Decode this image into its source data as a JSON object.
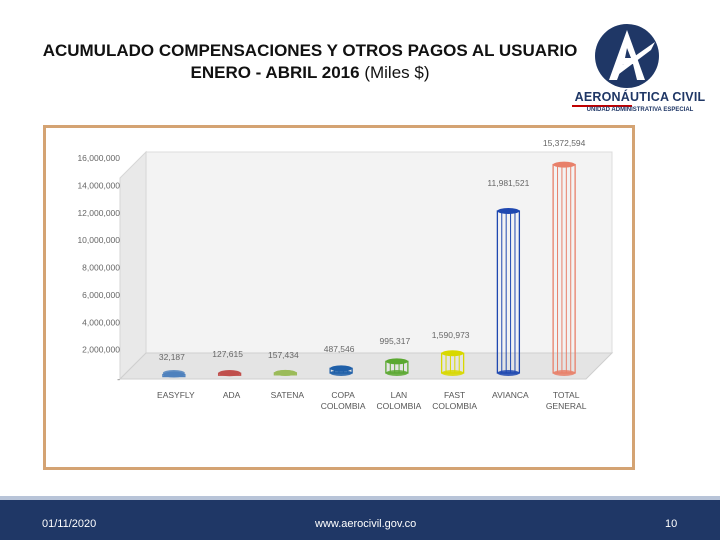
{
  "slide": {
    "title_main": "ACUMULADO COMPENSACIONES Y OTROS PAGOS AL USUARIO ENERO - ABRIL 2016",
    "title_unit": "(Miles $)",
    "logo_text": "AERONÁUTICA CIVIL",
    "logo_sub": "UNIDAD ADMINISTRATIVA ESPECIAL",
    "footer_date": "01/11/2020",
    "footer_url": "www.aerocivil.gov.co",
    "footer_page": "10"
  },
  "chart_data": {
    "type": "bar",
    "title": "",
    "xlabel": "",
    "ylabel": "",
    "ylim": [
      0,
      16000000
    ],
    "yticks": [
      "-",
      "2,000,000",
      "4,000,000",
      "6,000,000",
      "8,000,000",
      "10,000,000",
      "12,000,000",
      "14,000,000",
      "16,000,000"
    ],
    "categories": [
      "EASYFLY",
      "ADA",
      "SATENA",
      "COPA COLOMBIA",
      "LAN COLOMBIA",
      "FAST COLOMBIA",
      "AVIANCA",
      "TOTAL GENERAL"
    ],
    "category_lines": [
      [
        "EASYFLY"
      ],
      [
        "ADA"
      ],
      [
        "SATENA"
      ],
      [
        "COPA",
        "COLOMBIA"
      ],
      [
        "LAN",
        "COLOMBIA"
      ],
      [
        "FAST",
        "COLOMBIA"
      ],
      [
        "AVIANCA"
      ],
      [
        "TOTAL",
        "GENERAL"
      ]
    ],
    "values": [
      32187,
      127615,
      157434,
      487546,
      995317,
      1590973,
      11981521,
      15372594
    ],
    "value_labels": [
      "32,187",
      "127,615",
      "157,434",
      "487,546",
      "995,317",
      "1,590,973",
      "11,981,521",
      "15,372,594"
    ],
    "colors": [
      "#4f81bd",
      "#c0504d",
      "#9bbb59",
      "#1f5fa8",
      "#5aa830",
      "#d8d800",
      "#1f48b0",
      "#e8806a"
    ],
    "grid": false,
    "legend": "none"
  }
}
